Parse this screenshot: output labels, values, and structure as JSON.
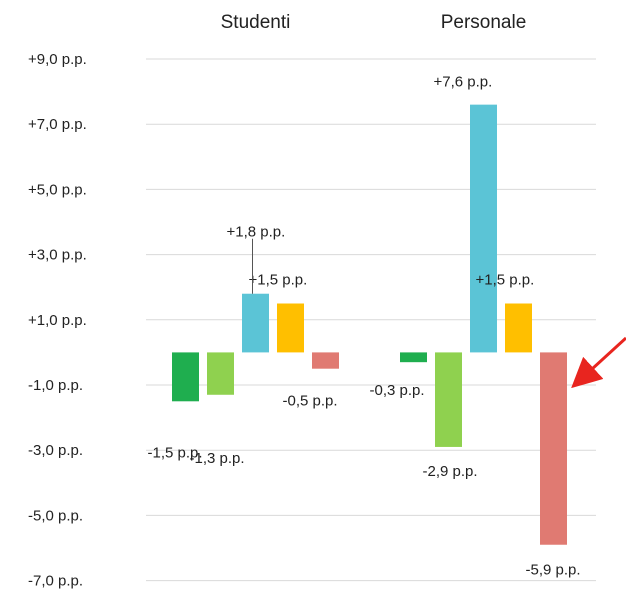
{
  "chart_data": {
    "type": "bar",
    "groups": [
      "Studenti",
      "Personale"
    ],
    "series": [
      {
        "color": "#1fae4f",
        "values": [
          -1.5,
          -0.3
        ]
      },
      {
        "color": "#8fd14f",
        "values": [
          -1.3,
          -2.9
        ]
      },
      {
        "color": "#5bc4d6",
        "values": [
          1.8,
          7.6
        ]
      },
      {
        "color": "#ffbf00",
        "values": [
          1.5,
          1.5
        ]
      },
      {
        "color": "#e07a72",
        "values": [
          -0.5,
          -5.9
        ]
      }
    ],
    "data_labels": [
      [
        "-1,5 p.p.",
        "-0,3 p.p."
      ],
      [
        "-1,3 p.p.",
        "-2,9 p.p."
      ],
      [
        "+1,8 p.p.",
        "+7,6 p.p."
      ],
      [
        "+1,5 p.p.",
        "+1,5 p.p."
      ],
      [
        "-0,5 p.p.",
        "-5,9 p.p."
      ]
    ],
    "y_ticks": [
      9,
      7,
      5,
      3,
      1,
      -1,
      -3,
      -5,
      -7
    ],
    "y_tick_labels": [
      "+9,0 p.p.",
      "+7,0 p.p.",
      "+5,0 p.p.",
      "+3,0 p.p.",
      "+1,0 p.p.",
      "-1,0 p.p.",
      "-3,0 p.p.",
      "-5,0 p.p.",
      "-7,0 p.p."
    ],
    "ylim": [
      -7,
      9
    ],
    "grid": true,
    "legend": "none",
    "annotation": {
      "type": "arrow",
      "color": "#e8251f",
      "points_to": "Personale -5,9 p.p. bar"
    }
  }
}
